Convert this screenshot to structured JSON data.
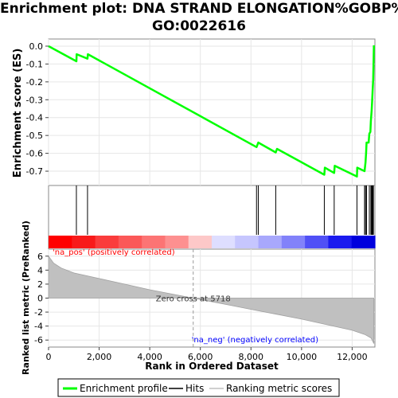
{
  "chart_data": {
    "type": "line",
    "title_lines": [
      "Enrichment plot: DNA STRAND ELONGATION%GOBP%",
      "GO:0022616"
    ],
    "xlabel": "Rank in Dataset",
    "xlabel_display": "Rank in Ordered Dataset",
    "xlim": [
      0,
      12900
    ],
    "x_ticks": [
      0,
      2000,
      4000,
      6000,
      8000,
      10000,
      12000
    ],
    "x_tick_labels": [
      "0",
      "2,000",
      "4,000",
      "6,000",
      "8,000",
      "10,000",
      "12,000"
    ],
    "es_panel": {
      "ylabel": "Enrichment score (ES)",
      "ylim": [
        -0.78,
        0.04
      ],
      "y_ticks": [
        0.0,
        -0.1,
        -0.2,
        -0.3,
        -0.4,
        -0.5,
        -0.6,
        -0.7
      ],
      "y_tick_labels": [
        "0.0",
        "-0.1",
        "-0.2",
        "-0.3",
        "-0.4",
        "-0.5",
        "-0.6",
        "-0.7"
      ],
      "series": [
        {
          "name": "Enrichment profile",
          "color": "#00ff00",
          "points": [
            [
              0,
              0.0
            ],
            [
              1100,
              -0.085
            ],
            [
              1110,
              -0.045
            ],
            [
              1540,
              -0.07
            ],
            [
              1555,
              -0.045
            ],
            [
              8220,
              -0.565
            ],
            [
              8290,
              -0.54
            ],
            [
              8980,
              -0.595
            ],
            [
              9030,
              -0.575
            ],
            [
              10900,
              -0.72
            ],
            [
              10920,
              -0.68
            ],
            [
              11290,
              -0.71
            ],
            [
              11310,
              -0.67
            ],
            [
              12190,
              -0.73
            ],
            [
              12200,
              -0.68
            ],
            [
              12490,
              -0.7
            ],
            [
              12530,
              -0.65
            ],
            [
              12550,
              -0.6
            ],
            [
              12570,
              -0.54
            ],
            [
              12650,
              -0.54
            ],
            [
              12680,
              -0.49
            ],
            [
              12720,
              -0.48
            ],
            [
              12740,
              -0.42
            ],
            [
              12770,
              -0.36
            ],
            [
              12790,
              -0.31
            ],
            [
              12810,
              -0.25
            ],
            [
              12830,
              -0.19
            ],
            [
              12840,
              -0.13
            ],
            [
              12850,
              -0.07
            ],
            [
              12860,
              0.005
            ]
          ]
        }
      ]
    },
    "hits": {
      "name": "Hits",
      "color": "#000000",
      "positions": [
        1100,
        1540,
        8220,
        8290,
        8980,
        10900,
        11290,
        12190,
        12490,
        12530,
        12570,
        12680,
        12740,
        12770,
        12790,
        12810,
        12830,
        12840
      ]
    },
    "ranking": {
      "name": "Ranking metric scores",
      "ylabel": "Ranked list metric (PreRanked)",
      "ylim": [
        -7,
        7
      ],
      "y_ticks": [
        6,
        4,
        2,
        0,
        -2,
        -4,
        -6
      ],
      "y_tick_labels": [
        "6",
        "4",
        "2",
        "0",
        "-2",
        "-4",
        "-6"
      ],
      "zero_cross": 5718,
      "zero_cross_label": "Zero cross at 5718",
      "pos_label": "'na_pos' (positively correlated)",
      "neg_label": "'na_neg' (negatively correlated)",
      "pos_label_color": "#ff0000",
      "neg_label_color": "#0000ff",
      "fill_color": "#c0c0c0",
      "points": [
        [
          0,
          6.0
        ],
        [
          200,
          5.0
        ],
        [
          500,
          4.3
        ],
        [
          1000,
          3.6
        ],
        [
          2000,
          2.8
        ],
        [
          3000,
          2.0
        ],
        [
          4000,
          1.2
        ],
        [
          5000,
          0.5
        ],
        [
          5718,
          0.0
        ],
        [
          7000,
          -0.9
        ],
        [
          8000,
          -1.6
        ],
        [
          9000,
          -2.3
        ],
        [
          10000,
          -3.0
        ],
        [
          11000,
          -3.8
        ],
        [
          12000,
          -4.6
        ],
        [
          12500,
          -5.2
        ],
        [
          12750,
          -5.7
        ],
        [
          12860,
          -6.5
        ]
      ]
    },
    "heatmap_colors": [
      "#ff0000",
      "#f81a1a",
      "#fa3c3c",
      "#fb5858",
      "#fc7474",
      "#fd9090",
      "#fdc8c8",
      "#dedeff",
      "#c6c6fe",
      "#a8a8fc",
      "#8282fa",
      "#5050f6",
      "#1a1aef",
      "#0000dd"
    ],
    "legend": {
      "placement": "bottom",
      "entries": [
        {
          "label": "Enrichment profile",
          "color": "#00ff00"
        },
        {
          "label": "Hits",
          "color": "#000000"
        },
        {
          "label": "Ranking metric scores",
          "color": "#c0c0c0"
        }
      ]
    }
  }
}
